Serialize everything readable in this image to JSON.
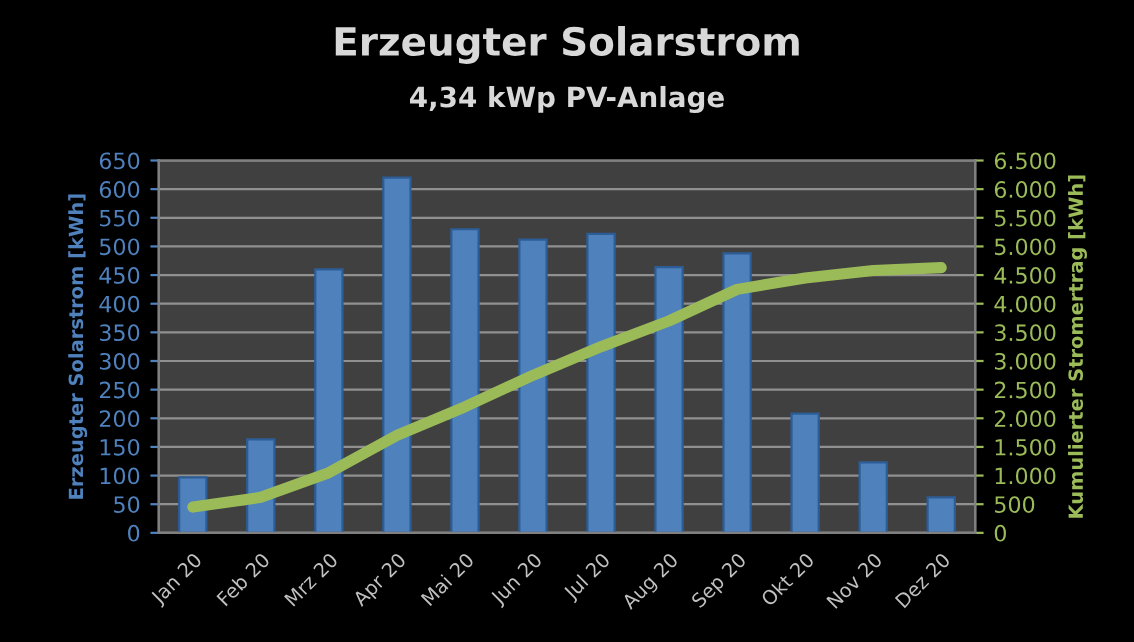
{
  "chart_data": {
    "type": "bar",
    "title": "Erzeugter Solarstrom",
    "subtitle": "4,34 kWp PV-Anlage",
    "ylabel": "Erzeugter Solarstrom [kWh]",
    "y2label": "Kumulierter Stromertrag [kWh]",
    "categories": [
      "Jan 20",
      "Feb 20",
      "Mrz 20",
      "Apr 20",
      "Mai 20",
      "Jun 20",
      "Jul 20",
      "Aug 20",
      "Sep 20",
      "Okt 20",
      "Nov 20",
      "Dez 20"
    ],
    "series": [
      {
        "color": "#4f81bd",
        "values": [
          97,
          163,
          460,
          620,
          530,
          512,
          522,
          464,
          488,
          208,
          123,
          62
        ]
      },
      {
        "type": "line",
        "axis": "y2",
        "color": "#9bbb59",
        "values": [
          450,
          620,
          1050,
          1700,
          2200,
          2750,
          3250,
          3700,
          4250,
          4450,
          4580,
          4630
        ]
      }
    ],
    "ylim": [
      0,
      650
    ],
    "yticks": [
      0,
      50,
      100,
      150,
      200,
      250,
      300,
      350,
      400,
      450,
      500,
      550,
      600,
      650
    ],
    "y2lim": [
      0,
      6500
    ],
    "y2ticks": [
      0,
      500,
      {
        "value": 1000,
        "label": "1.000"
      },
      {
        "value": 1500,
        "label": "1.500"
      },
      {
        "value": 2000,
        "label": "2.000"
      },
      {
        "value": 2500,
        "label": "2.500"
      },
      {
        "value": 3000,
        "label": "3.000"
      },
      {
        "value": 3500,
        "label": "3.500"
      },
      {
        "value": 4000,
        "label": "4.000"
      },
      {
        "value": 4500,
        "label": "4.500"
      },
      {
        "value": 5000,
        "label": "5.000"
      },
      {
        "value": 5500,
        "label": "5.500"
      },
      {
        "value": 6000,
        "label": "6.000"
      },
      {
        "value": 6500,
        "label": "6.500"
      }
    ],
    "grid": "y",
    "legend": false
  }
}
